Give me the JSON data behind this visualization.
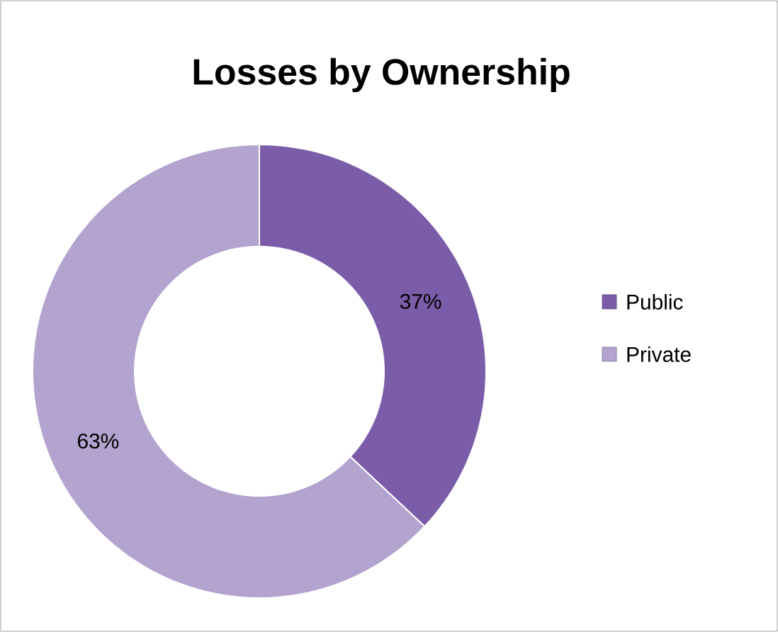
{
  "chart_data": {
    "type": "donut",
    "title": "Losses by Ownership",
    "categories": [
      "Public",
      "Private"
    ],
    "values": [
      37,
      63
    ],
    "colors": [
      "#7b5ca8",
      "#b2a3cf"
    ],
    "value_labels": [
      "37%",
      "63%"
    ],
    "legend": "right"
  }
}
